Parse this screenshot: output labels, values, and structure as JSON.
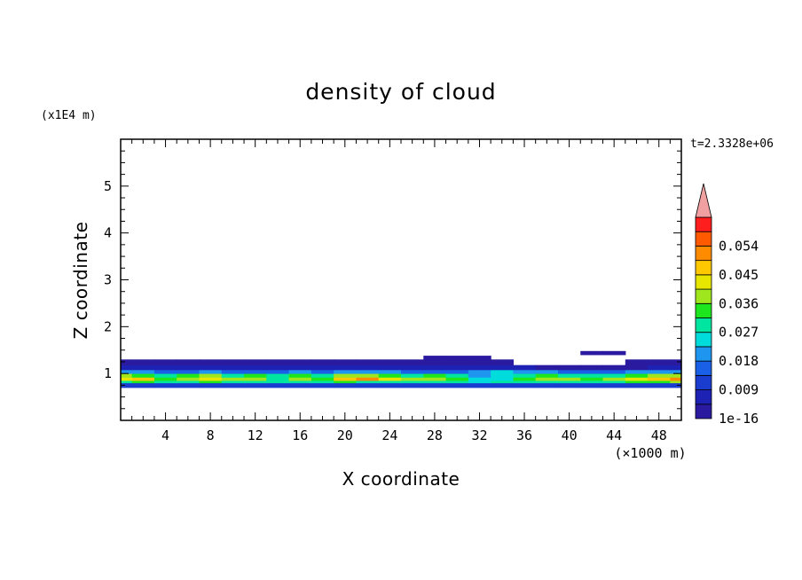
{
  "chart_data": {
    "type": "heatmap",
    "title": "density of cloud",
    "xlabel": "X coordinate",
    "ylabel": "Z coordinate",
    "x_unit": "(×1000 m)",
    "y_unit": "(x1E4 m)",
    "time_label": "t=2.3328e+06",
    "xlim": [
      0,
      50
    ],
    "ylim": [
      0,
      6
    ],
    "x_ticks": [
      4,
      8,
      12,
      16,
      20,
      24,
      28,
      32,
      36,
      40,
      44,
      48
    ],
    "y_ticks": [
      1,
      2,
      3,
      4,
      5
    ],
    "colorbar": {
      "levels": [
        1e-16,
        0.0045,
        0.009,
        0.0135,
        0.018,
        0.0225,
        0.027,
        0.0315,
        0.036,
        0.0405,
        0.045,
        0.0495,
        0.054,
        0.0585
      ],
      "colors": [
        "#5a0aa0",
        "#2a1aa0",
        "#1e22b4",
        "#1a3ccf",
        "#1a60e6",
        "#1e96f0",
        "#00dcdc",
        "#00e6a0",
        "#1ee61e",
        "#a0e61e",
        "#e6e600",
        "#ffc800",
        "#ff8c00",
        "#ff5a00",
        "#ff1e1e",
        "#f0a0a0"
      ],
      "tick_labels": [
        "1e-16",
        "0.009",
        "0.018",
        "0.027",
        "0.036",
        "0.045",
        "0.054"
      ],
      "extend": "max"
    },
    "field": {
      "x": [
        0,
        2,
        4,
        6,
        8,
        10,
        12,
        14,
        16,
        18,
        20,
        22,
        24,
        26,
        28,
        30,
        32,
        34,
        36,
        38,
        40,
        42,
        44,
        46,
        48,
        50
      ],
      "bands": [
        {
          "z": [
            0.7,
            0.8
          ],
          "values": [
            0.012,
            0.012,
            0.012,
            0.012,
            0.012,
            0.012,
            0.012,
            0.012,
            0.012,
            0.012,
            0.012,
            0.012,
            0.012,
            0.012,
            0.012,
            0.012,
            0.012,
            0.012,
            0.012,
            0.012,
            0.012,
            0.012,
            0.012,
            0.012,
            0.012,
            0.012
          ]
        },
        {
          "z": [
            0.8,
            0.85
          ],
          "values": [
            0.03,
            0.034,
            0.028,
            0.03,
            0.032,
            0.029,
            0.03,
            0.027,
            0.031,
            0.03,
            0.033,
            0.031,
            0.029,
            0.03,
            0.028,
            0.03,
            0.025,
            0.027,
            0.029,
            0.031,
            0.03,
            0.028,
            0.03,
            0.032,
            0.034,
            0.036
          ]
        },
        {
          "z": [
            0.85,
            0.92
          ],
          "values": [
            0.042,
            0.046,
            0.034,
            0.04,
            0.044,
            0.036,
            0.038,
            0.03,
            0.04,
            0.034,
            0.048,
            0.05,
            0.042,
            0.036,
            0.038,
            0.034,
            0.024,
            0.026,
            0.034,
            0.04,
            0.038,
            0.034,
            0.038,
            0.042,
            0.046,
            0.05
          ]
        },
        {
          "z": [
            0.92,
            1.0
          ],
          "values": [
            0.036,
            0.032,
            0.03,
            0.034,
            0.036,
            0.03,
            0.032,
            0.027,
            0.034,
            0.03,
            0.036,
            0.038,
            0.034,
            0.03,
            0.032,
            0.03,
            0.022,
            0.026,
            0.03,
            0.032,
            0.03,
            0.028,
            0.03,
            0.033,
            0.036,
            0.04
          ]
        },
        {
          "z": [
            1.0,
            1.08
          ],
          "values": [
            0.02,
            0.018,
            0.016,
            0.016,
            0.018,
            0.016,
            0.016,
            0.015,
            0.018,
            0.016,
            0.02,
            0.02,
            0.018,
            0.016,
            0.017,
            0.016,
            0.02,
            0.024,
            0.018,
            0.018,
            0.016,
            0.016,
            0.017,
            0.018,
            0.02,
            0.022
          ]
        },
        {
          "z": [
            1.08,
            1.18
          ],
          "values": [
            0.008,
            0.008,
            0.007,
            0.007,
            0.008,
            0.007,
            0.007,
            0.007,
            0.008,
            0.007,
            0.008,
            0.008,
            0.008,
            0.007,
            0.008,
            0.008,
            0.006,
            0.006,
            0.005,
            0.004,
            0.004,
            0.004,
            0.004,
            0.004,
            0.005,
            0.006
          ]
        },
        {
          "z": [
            1.18,
            1.3
          ],
          "values": [
            0.004,
            0.003,
            0.003,
            0.003,
            0.003,
            0.003,
            0.003,
            0.003,
            0.003,
            0.003,
            0.003,
            0.003,
            0.003,
            0.003,
            0.004,
            0.004,
            0.003,
            0.001,
            0,
            0,
            0,
            0,
            0,
            0.001,
            0.002,
            0.003
          ]
        },
        {
          "z": [
            1.3,
            1.38
          ],
          "values": [
            0,
            0,
            0,
            0,
            0,
            0,
            0,
            0,
            0,
            0,
            0,
            0,
            0,
            0,
            0.002,
            0.003,
            0.001,
            0,
            0,
            0,
            0,
            0,
            0,
            0,
            0,
            0
          ]
        },
        {
          "z": [
            1.4,
            1.48
          ],
          "values": [
            0,
            0,
            0,
            0,
            0,
            0,
            0,
            0,
            0,
            0,
            0,
            0,
            0,
            0,
            0,
            0,
            0,
            0,
            0,
            0,
            0,
            0.001,
            0.002,
            0,
            0,
            0
          ]
        }
      ]
    }
  }
}
